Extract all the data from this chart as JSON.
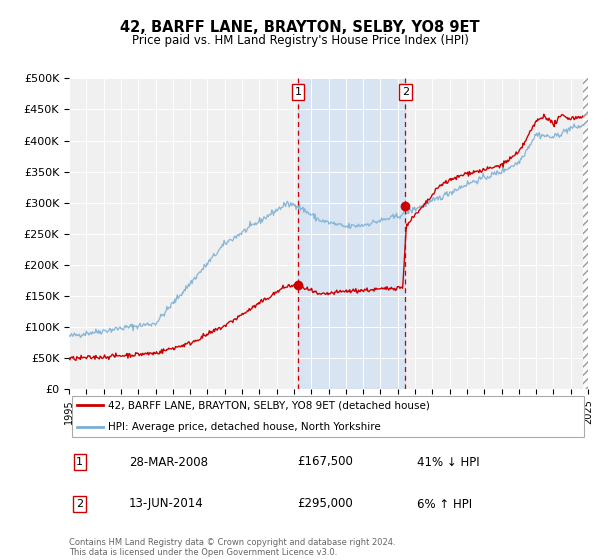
{
  "title": "42, BARFF LANE, BRAYTON, SELBY, YO8 9ET",
  "subtitle": "Price paid vs. HM Land Registry's House Price Index (HPI)",
  "xlim": [
    1995.0,
    2025.0
  ],
  "ylim": [
    0,
    500000
  ],
  "yticks": [
    0,
    50000,
    100000,
    150000,
    200000,
    250000,
    300000,
    350000,
    400000,
    450000,
    500000
  ],
  "ytick_labels": [
    "£0",
    "£50K",
    "£100K",
    "£150K",
    "£200K",
    "£250K",
    "£300K",
    "£350K",
    "£400K",
    "£450K",
    "£500K"
  ],
  "xticks": [
    1995,
    1996,
    1997,
    1998,
    1999,
    2000,
    2001,
    2002,
    2003,
    2004,
    2005,
    2006,
    2007,
    2008,
    2009,
    2010,
    2011,
    2012,
    2013,
    2014,
    2015,
    2016,
    2017,
    2018,
    2019,
    2020,
    2021,
    2022,
    2023,
    2024,
    2025
  ],
  "sale1_x": 2008.23,
  "sale1_y": 167500,
  "sale2_x": 2014.45,
  "sale2_y": 295000,
  "vline1_x": 2008.23,
  "vline2_x": 2014.45,
  "shade_color": "#d0e0f5",
  "red_color": "#cc0000",
  "blue_color": "#7bafd4",
  "legend_label1": "42, BARFF LANE, BRAYTON, SELBY, YO8 9ET (detached house)",
  "legend_label2": "HPI: Average price, detached house, North Yorkshire",
  "table_row1": [
    "1",
    "28-MAR-2008",
    "£167,500",
    "41% ↓ HPI"
  ],
  "table_row2": [
    "2",
    "13-JUN-2014",
    "£295,000",
    "6% ↑ HPI"
  ],
  "footnote": "Contains HM Land Registry data © Crown copyright and database right 2024.\nThis data is licensed under the Open Government Licence v3.0.",
  "plot_bg_color": "#f0f0f0",
  "grid_color": "#ffffff"
}
